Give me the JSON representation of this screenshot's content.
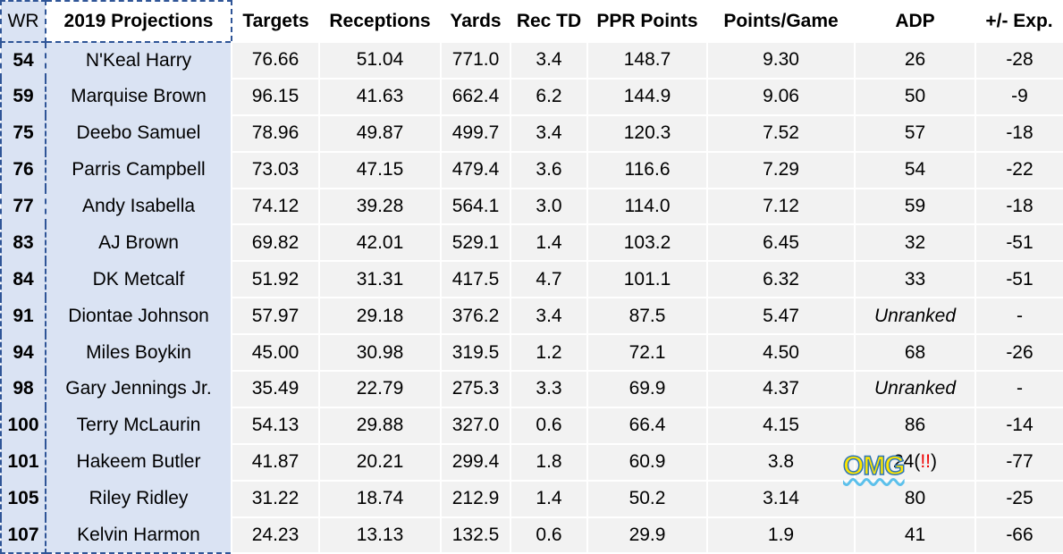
{
  "table": {
    "headers": [
      "WR",
      "2019 Projections",
      "Targets",
      "Receptions",
      "Yards",
      "Rec TD",
      "PPR Points",
      "Points/Game",
      "ADP",
      "+/- Exp."
    ],
    "rows": [
      [
        "54",
        "N'Keal Harry",
        "76.66",
        "51.04",
        "771.0",
        "3.4",
        "148.7",
        "9.30",
        "26",
        "-28"
      ],
      [
        "59",
        "Marquise Brown",
        "96.15",
        "41.63",
        "662.4",
        "6.2",
        "144.9",
        "9.06",
        "50",
        "-9"
      ],
      [
        "75",
        "Deebo Samuel",
        "78.96",
        "49.87",
        "499.7",
        "3.4",
        "120.3",
        "7.52",
        "57",
        "-18"
      ],
      [
        "76",
        "Parris Campbell",
        "73.03",
        "47.15",
        "479.4",
        "3.6",
        "116.6",
        "7.29",
        "54",
        "-22"
      ],
      [
        "77",
        "Andy Isabella",
        "74.12",
        "39.28",
        "564.1",
        "3.0",
        "114.0",
        "7.12",
        "59",
        "-18"
      ],
      [
        "83",
        "AJ Brown",
        "69.82",
        "42.01",
        "529.1",
        "1.4",
        "103.2",
        "6.45",
        "32",
        "-51"
      ],
      [
        "84",
        "DK Metcalf",
        "51.92",
        "31.31",
        "417.5",
        "4.7",
        "101.1",
        "6.32",
        "33",
        "-51"
      ],
      [
        "91",
        "Diontae Johnson",
        "57.97",
        "29.18",
        "376.2",
        "3.4",
        "87.5",
        "5.47",
        "Unranked",
        "-"
      ],
      [
        "94",
        "Miles Boykin",
        "45.00",
        "30.98",
        "319.5",
        "1.2",
        "72.1",
        "4.50",
        "68",
        "-26"
      ],
      [
        "98",
        "Gary Jennings Jr.",
        "35.49",
        "22.79",
        "275.3",
        "3.3",
        "69.9",
        "4.37",
        "Unranked",
        "-"
      ],
      [
        "100",
        "Terry McLaurin",
        "54.13",
        "29.88",
        "327.0",
        "0.6",
        "66.4",
        "4.15",
        "86",
        "-14"
      ],
      [
        "101",
        "Hakeem Butler",
        "41.87",
        "20.21",
        "299.4",
        "1.8",
        "60.9",
        "3.8",
        {
          "badge": "OMG",
          "text": "24(",
          "alert": "!!",
          "end": ")"
        },
        "-77"
      ],
      [
        "105",
        "Riley Ridley",
        "31.22",
        "18.74",
        "212.9",
        "1.4",
        "50.2",
        "3.14",
        "80",
        "-25"
      ],
      [
        "107",
        "Kelvin Harmon",
        "24.23",
        "13.13",
        "132.5",
        "0.6",
        "29.9",
        "1.9",
        "41",
        "-66"
      ]
    ]
  }
}
